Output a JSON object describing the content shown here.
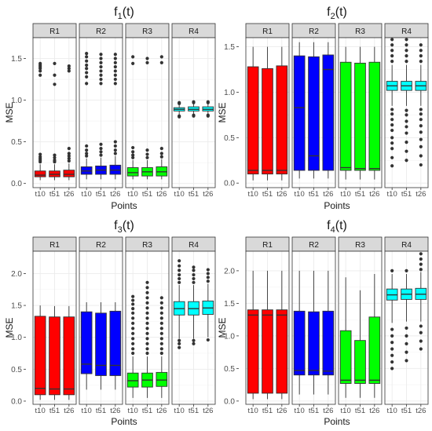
{
  "chart_data": [
    {
      "type": "boxplot",
      "title": "f1(t)",
      "title_base": "f",
      "title_sub": "1",
      "title_suffix": "(t)",
      "xlabel": "Points",
      "ylabel": "MSE",
      "ylim": [
        -0.05,
        1.75
      ],
      "yticks": [
        0.0,
        0.5,
        1.0,
        1.5
      ],
      "ytick_labels": [
        "0.0",
        "0.5",
        "1.0",
        "1.5"
      ],
      "grid": true,
      "facets": [
        {
          "label": "R1",
          "color": "#ff0000",
          "boxes": [
            {
              "x": "t10",
              "whisker_low": 0.04,
              "q1": 0.08,
              "median": 0.1,
              "q3": 0.15,
              "whisker_high": 0.23,
              "outliers": [
                0.26,
                0.28,
                0.3,
                0.32,
                0.35,
                1.3,
                1.35,
                1.38,
                1.4,
                1.42,
                1.44
              ]
            },
            {
              "x": "t51",
              "whisker_low": 0.04,
              "q1": 0.08,
              "median": 0.11,
              "q3": 0.15,
              "whisker_high": 0.23,
              "outliers": [
                0.26,
                0.28,
                0.31,
                0.34,
                1.19,
                1.3,
                1.44
              ]
            },
            {
              "x": "t26",
              "whisker_low": 0.04,
              "q1": 0.08,
              "median": 0.11,
              "q3": 0.16,
              "whisker_high": 0.24,
              "outliers": [
                0.27,
                0.3,
                0.33,
                0.36,
                0.42,
                1.35,
                1.38,
                1.41
              ]
            }
          ]
        },
        {
          "label": "R2",
          "color": "#0000ff",
          "boxes": [
            {
              "x": "t10",
              "whisker_low": 0.05,
              "q1": 0.11,
              "median": 0.15,
              "q3": 0.2,
              "whisker_high": 0.3,
              "outliers": [
                0.33,
                0.36,
                0.4,
                0.45,
                1.2,
                1.28,
                1.33,
                1.38,
                1.42,
                1.47,
                1.52,
                1.56
              ]
            },
            {
              "x": "t51",
              "whisker_low": 0.05,
              "q1": 0.11,
              "median": 0.16,
              "q3": 0.21,
              "whisker_high": 0.31,
              "outliers": [
                0.34,
                0.38,
                0.42,
                0.47,
                1.2,
                1.25,
                1.3,
                1.35,
                1.4,
                1.45,
                1.5,
                1.55
              ]
            },
            {
              "x": "t26",
              "whisker_low": 0.05,
              "q1": 0.11,
              "median": 0.16,
              "q3": 0.22,
              "whisker_high": 0.33,
              "outliers": [
                0.36,
                0.4,
                0.45,
                0.5,
                1.2,
                1.25,
                1.3,
                1.35,
                1.4,
                1.45,
                1.5,
                1.55
              ]
            }
          ]
        },
        {
          "label": "R3",
          "color": "#00ff00",
          "boxes": [
            {
              "x": "t10",
              "whisker_low": 0.05,
              "q1": 0.09,
              "median": 0.13,
              "q3": 0.19,
              "whisker_high": 0.28,
              "outliers": [
                0.31,
                0.34,
                0.38,
                0.43,
                1.44,
                1.52
              ]
            },
            {
              "x": "t51",
              "whisker_low": 0.05,
              "q1": 0.09,
              "median": 0.14,
              "q3": 0.19,
              "whisker_high": 0.28,
              "outliers": [
                0.31,
                0.35,
                0.4,
                1.45,
                1.5
              ]
            },
            {
              "x": "t26",
              "whisker_low": 0.05,
              "q1": 0.09,
              "median": 0.14,
              "q3": 0.2,
              "whisker_high": 0.29,
              "outliers": [
                0.32,
                0.36,
                0.42,
                1.45,
                1.52
              ]
            }
          ]
        },
        {
          "label": "R4",
          "color": "#00ffff",
          "boxes": [
            {
              "x": "t10",
              "whisker_low": 0.82,
              "q1": 0.87,
              "median": 0.89,
              "q3": 0.91,
              "whisker_high": 0.95,
              "outliers": [
                0.8,
                0.81,
                0.96,
                0.97
              ]
            },
            {
              "x": "t51",
              "whisker_low": 0.83,
              "q1": 0.87,
              "median": 0.89,
              "q3": 0.92,
              "whisker_high": 0.96,
              "outliers": [
                0.81,
                0.82,
                0.97,
                0.98
              ]
            },
            {
              "x": "t26",
              "whisker_low": 0.83,
              "q1": 0.87,
              "median": 0.89,
              "q3": 0.92,
              "whisker_high": 0.96,
              "outliers": [
                0.81,
                0.82,
                0.97,
                0.98
              ]
            }
          ]
        }
      ]
    },
    {
      "type": "boxplot",
      "title": "f2(t)",
      "title_base": "f",
      "title_sub": "2",
      "title_suffix": "(t)",
      "xlabel": "Points",
      "ylabel": "MSE",
      "ylim": [
        -0.05,
        1.6
      ],
      "yticks": [
        0.0,
        0.5,
        1.0,
        1.5
      ],
      "ytick_labels": [
        "0.0",
        "0.5",
        "1.0",
        "1.5"
      ],
      "grid": true,
      "facets": [
        {
          "label": "R1",
          "color": "#ff0000",
          "boxes": [
            {
              "x": "t10",
              "whisker_low": 0.03,
              "q1": 0.1,
              "median": 0.14,
              "q3": 1.28,
              "whisker_high": 1.5,
              "outliers": []
            },
            {
              "x": "t51",
              "whisker_low": 0.03,
              "q1": 0.1,
              "median": 0.14,
              "q3": 1.26,
              "whisker_high": 1.5,
              "outliers": []
            },
            {
              "x": "t26",
              "whisker_low": 0.03,
              "q1": 0.1,
              "median": 0.14,
              "q3": 1.29,
              "whisker_high": 1.5,
              "outliers": []
            }
          ]
        },
        {
          "label": "R2",
          "color": "#0000ff",
          "boxes": [
            {
              "x": "t10",
              "whisker_low": 0.05,
              "q1": 0.14,
              "median": 0.83,
              "q3": 1.4,
              "whisker_high": 1.55,
              "outliers": []
            },
            {
              "x": "t51",
              "whisker_low": 0.05,
              "q1": 0.14,
              "median": 0.3,
              "q3": 1.39,
              "whisker_high": 1.55,
              "outliers": []
            },
            {
              "x": "t26",
              "whisker_low": 0.05,
              "q1": 0.14,
              "median": 1.25,
              "q3": 1.41,
              "whisker_high": 1.55,
              "outliers": []
            }
          ]
        },
        {
          "label": "R3",
          "color": "#00ff00",
          "boxes": [
            {
              "x": "t10",
              "whisker_low": 0.04,
              "q1": 0.14,
              "median": 0.17,
              "q3": 1.33,
              "whisker_high": 1.5,
              "outliers": []
            },
            {
              "x": "t51",
              "whisker_low": 0.04,
              "q1": 0.14,
              "median": 0.16,
              "q3": 1.32,
              "whisker_high": 1.5,
              "outliers": []
            },
            {
              "x": "t26",
              "whisker_low": 0.04,
              "q1": 0.14,
              "median": 0.16,
              "q3": 1.33,
              "whisker_high": 1.5,
              "outliers": []
            }
          ]
        },
        {
          "label": "R4",
          "color": "#00ffff",
          "boxes": [
            {
              "x": "t10",
              "whisker_low": 0.85,
              "q1": 1.02,
              "median": 1.07,
              "q3": 1.12,
              "whisker_high": 1.3,
              "outliers": [
                0.19,
                0.28,
                0.38,
                0.44,
                0.5,
                0.58,
                0.64,
                0.7,
                0.76,
                0.81,
                1.34,
                1.4,
                1.46,
                1.52,
                1.58
              ]
            },
            {
              "x": "t51",
              "whisker_low": 0.85,
              "q1": 1.02,
              "median": 1.07,
              "q3": 1.12,
              "whisker_high": 1.3,
              "outliers": [
                0.25,
                0.35,
                0.45,
                0.55,
                0.62,
                0.68,
                0.75,
                0.8,
                1.34,
                1.4,
                1.46,
                1.52,
                1.58
              ]
            },
            {
              "x": "t26",
              "whisker_low": 0.85,
              "q1": 1.02,
              "median": 1.07,
              "q3": 1.12,
              "whisker_high": 1.3,
              "outliers": [
                0.2,
                0.3,
                0.4,
                0.48,
                0.56,
                0.63,
                0.7,
                0.76,
                0.81,
                1.34,
                1.4,
                1.46,
                1.52
              ]
            }
          ]
        }
      ]
    },
    {
      "type": "boxplot",
      "title": "f3(t)",
      "title_base": "f",
      "title_sub": "3",
      "title_suffix": "(t)",
      "xlabel": "Points",
      "ylabel": "MSE",
      "ylim": [
        -0.05,
        2.35
      ],
      "yticks": [
        0.0,
        0.5,
        1.0,
        1.5,
        2.0
      ],
      "ytick_labels": [
        "0.0",
        "0.5",
        "1.0",
        "1.5",
        "2.0"
      ],
      "grid": true,
      "facets": [
        {
          "label": "R1",
          "color": "#ff0000",
          "boxes": [
            {
              "x": "t10",
              "whisker_low": 0.02,
              "q1": 0.1,
              "median": 0.2,
              "q3": 1.33,
              "whisker_high": 1.5,
              "outliers": []
            },
            {
              "x": "t51",
              "whisker_low": 0.02,
              "q1": 0.1,
              "median": 0.19,
              "q3": 1.32,
              "whisker_high": 1.49,
              "outliers": []
            },
            {
              "x": "t26",
              "whisker_low": 0.02,
              "q1": 0.1,
              "median": 0.19,
              "q3": 1.32,
              "whisker_high": 1.49,
              "outliers": []
            }
          ]
        },
        {
          "label": "R2",
          "color": "#0000ff",
          "boxes": [
            {
              "x": "t10",
              "whisker_low": 0.18,
              "q1": 0.43,
              "median": 0.58,
              "q3": 1.4,
              "whisker_high": 1.55,
              "outliers": []
            },
            {
              "x": "t51",
              "whisker_low": 0.18,
              "q1": 0.4,
              "median": 0.56,
              "q3": 1.38,
              "whisker_high": 1.55,
              "outliers": []
            },
            {
              "x": "t26",
              "whisker_low": 0.18,
              "q1": 0.4,
              "median": 0.56,
              "q3": 1.41,
              "whisker_high": 1.55,
              "outliers": []
            }
          ]
        },
        {
          "label": "R3",
          "color": "#00ff00",
          "boxes": [
            {
              "x": "t10",
              "whisker_low": 0.05,
              "q1": 0.22,
              "median": 0.32,
              "q3": 0.44,
              "whisker_high": 0.7,
              "outliers": [
                0.75,
                0.82,
                0.9,
                0.98,
                1.06,
                1.14,
                1.22,
                1.3,
                1.38,
                1.45,
                1.52,
                1.58,
                1.64
              ]
            },
            {
              "x": "t51",
              "whisker_low": 0.05,
              "q1": 0.22,
              "median": 0.33,
              "q3": 0.44,
              "whisker_high": 0.7,
              "outliers": [
                0.75,
                0.82,
                0.9,
                0.98,
                1.06,
                1.14,
                1.22,
                1.3,
                1.38,
                1.46,
                1.54,
                1.62,
                1.7,
                1.78,
                1.86
              ]
            },
            {
              "x": "t26",
              "whisker_low": 0.05,
              "q1": 0.23,
              "median": 0.33,
              "q3": 0.45,
              "whisker_high": 0.7,
              "outliers": [
                0.75,
                0.82,
                0.9,
                0.98,
                1.06,
                1.14,
                1.22,
                1.3,
                1.38,
                1.46,
                1.54,
                1.62
              ]
            }
          ]
        },
        {
          "label": "R4",
          "color": "#00ffff",
          "boxes": [
            {
              "x": "t10",
              "whisker_low": 0.98,
              "q1": 1.35,
              "median": 1.45,
              "q3": 1.56,
              "whisker_high": 1.82,
              "outliers": [
                0.84,
                0.9,
                0.95,
                1.86,
                1.92,
                1.98,
                2.05,
                2.12,
                2.2
              ]
            },
            {
              "x": "t51",
              "whisker_low": 0.98,
              "q1": 1.35,
              "median": 1.45,
              "q3": 1.56,
              "whisker_high": 1.82,
              "outliers": [
                0.9,
                0.95,
                1.86,
                1.92,
                1.98,
                2.05,
                2.1
              ]
            },
            {
              "x": "t26",
              "whisker_low": 1.0,
              "q1": 1.36,
              "median": 1.46,
              "q3": 1.57,
              "whisker_high": 1.84,
              "outliers": [
                0.96,
                1.88,
                1.94,
                2.0,
                2.06
              ]
            }
          ]
        }
      ]
    },
    {
      "type": "boxplot",
      "title": "f4(t)",
      "title_base": "f",
      "title_sub": "4",
      "title_suffix": "(t)",
      "xlabel": "Points",
      "ylabel": "MSE",
      "ylim": [
        -0.05,
        2.3
      ],
      "yticks": [
        0.0,
        0.5,
        1.0,
        1.5,
        2.0
      ],
      "ytick_labels": [
        "0.0",
        "0.5",
        "1.0",
        "1.5",
        "2.0"
      ],
      "grid": true,
      "facets": [
        {
          "label": "R1",
          "color": "#ff0000",
          "boxes": [
            {
              "x": "t10",
              "whisker_low": 0.03,
              "q1": 0.12,
              "median": 1.32,
              "q3": 1.4,
              "whisker_high": 2.0,
              "outliers": []
            },
            {
              "x": "t51",
              "whisker_low": 0.03,
              "q1": 0.12,
              "median": 1.32,
              "q3": 1.4,
              "whisker_high": 2.0,
              "outliers": []
            },
            {
              "x": "t26",
              "whisker_low": 0.03,
              "q1": 0.12,
              "median": 1.32,
              "q3": 1.4,
              "whisker_high": 2.0,
              "outliers": []
            }
          ]
        },
        {
          "label": "R2",
          "color": "#0000ff",
          "boxes": [
            {
              "x": "t10",
              "whisker_low": 0.1,
              "q1": 0.4,
              "median": 0.47,
              "q3": 1.38,
              "whisker_high": 2.0,
              "outliers": []
            },
            {
              "x": "t51",
              "whisker_low": 0.1,
              "q1": 0.4,
              "median": 0.47,
              "q3": 1.37,
              "whisker_high": 2.0,
              "outliers": []
            },
            {
              "x": "t26",
              "whisker_low": 0.1,
              "q1": 0.4,
              "median": 0.46,
              "q3": 1.38,
              "whisker_high": 2.0,
              "outliers": []
            }
          ]
        },
        {
          "label": "R3",
          "color": "#00ff00",
          "boxes": [
            {
              "x": "t10",
              "whisker_low": 0.05,
              "q1": 0.27,
              "median": 0.32,
              "q3": 1.08,
              "whisker_high": 1.9,
              "outliers": []
            },
            {
              "x": "t51",
              "whisker_low": 0.05,
              "q1": 0.27,
              "median": 0.32,
              "q3": 0.93,
              "whisker_high": 1.7,
              "outliers": []
            },
            {
              "x": "t26",
              "whisker_low": 0.05,
              "q1": 0.27,
              "median": 0.32,
              "q3": 1.29,
              "whisker_high": 1.95,
              "outliers": []
            }
          ]
        },
        {
          "label": "R4",
          "color": "#00ffff",
          "boxes": [
            {
              "x": "t10",
              "whisker_low": 1.2,
              "q1": 1.55,
              "median": 1.63,
              "q3": 1.72,
              "whisker_high": 1.95,
              "outliers": [
                0.5,
                0.6,
                0.7,
                0.8,
                0.9,
                1.0,
                1.1,
                2.0
              ]
            },
            {
              "x": "t51",
              "whisker_low": 1.22,
              "q1": 1.56,
              "median": 1.64,
              "q3": 1.72,
              "whisker_high": 1.95,
              "outliers": [
                0.62,
                0.75,
                0.88,
                1.0,
                1.12,
                2.0
              ]
            },
            {
              "x": "t26",
              "whisker_low": 1.22,
              "q1": 1.56,
              "median": 1.64,
              "q3": 1.73,
              "whisker_high": 1.98,
              "outliers": [
                0.8,
                0.92,
                1.05,
                1.15,
                2.02,
                2.1,
                2.18,
                2.26
              ]
            }
          ]
        }
      ]
    }
  ]
}
